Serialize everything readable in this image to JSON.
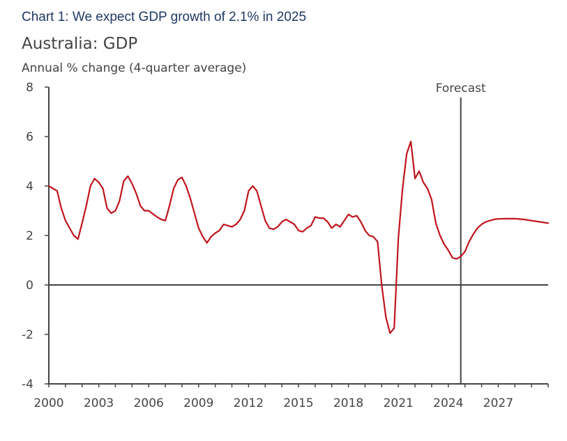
{
  "caption": "Chart 1: We expect GDP growth of 2.1% in 2025",
  "chart_data": {
    "type": "line",
    "title": "Australia: GDP",
    "subtitle": "Annual % change (4-quarter average)",
    "xlabel": "",
    "ylabel": "",
    "ylim": [
      -4,
      8
    ],
    "xlim": [
      2000,
      2030
    ],
    "yticks": [
      "8",
      "6",
      "4",
      "2",
      "0",
      "-2",
      "-4"
    ],
    "yticks_values": [
      8,
      6,
      4,
      2,
      0,
      -2,
      -4
    ],
    "xticks": [
      "2000",
      "2003",
      "2006",
      "2009",
      "2012",
      "2015",
      "2018",
      "2021",
      "2024",
      "2027"
    ],
    "xticks_values": [
      2000,
      2003,
      2006,
      2009,
      2012,
      2015,
      2018,
      2021,
      2024,
      2027
    ],
    "grid": false,
    "colors": {
      "series": "#c0141c",
      "axis": "#444444"
    },
    "annotation": {
      "text": "Forecast",
      "x": 2024.75
    },
    "series": [
      {
        "x": [
          2000.0,
          2000.5,
          2000.75,
          2001.0,
          2001.5,
          2001.75,
          2002.0,
          2002.25,
          2002.5,
          2002.75,
          2003.0,
          2003.25,
          2003.5,
          2003.75,
          2004.0,
          2004.25,
          2004.5,
          2004.75,
          2005.0,
          2005.25,
          2005.5,
          2005.75,
          2006.0,
          2006.5,
          2006.75,
          2007.0,
          2007.25,
          2007.5,
          2007.75,
          2008.0,
          2008.25,
          2008.5,
          2008.75,
          2009.0,
          2009.25,
          2009.5,
          2009.75,
          2010.0,
          2010.25,
          2010.5,
          2010.75,
          2011.0,
          2011.25,
          2011.5,
          2011.75,
          2012.0,
          2012.25,
          2012.5,
          2012.75,
          2013.0,
          2013.25,
          2013.5,
          2013.75,
          2014.0,
          2014.25,
          2014.5,
          2014.75,
          2015.0,
          2015.25,
          2015.5,
          2015.75,
          2016.0,
          2016.25,
          2016.5,
          2016.75,
          2017.0,
          2017.25,
          2017.5,
          2017.75,
          2018.0,
          2018.25,
          2018.5,
          2018.75,
          2019.0,
          2019.25,
          2019.5,
          2019.75,
          2020.0,
          2020.25,
          2020.5,
          2020.75,
          2021.0,
          2021.25,
          2021.5,
          2021.75,
          2022.0,
          2022.25,
          2022.5,
          2022.75,
          2023.0,
          2023.25,
          2023.5,
          2023.75,
          2024.0,
          2024.25,
          2024.5,
          2024.75,
          2025.0,
          2025.25,
          2025.5,
          2025.75,
          2026.0,
          2026.25,
          2026.5,
          2026.75,
          2027.0,
          2027.5,
          2028.0,
          2028.5,
          2029.0,
          2029.5,
          2030.0
        ],
        "values": [
          4.0,
          3.8,
          3.1,
          2.6,
          2.0,
          1.85,
          2.5,
          3.2,
          4.0,
          4.3,
          4.15,
          3.9,
          3.1,
          2.9,
          3.0,
          3.4,
          4.2,
          4.4,
          4.1,
          3.7,
          3.2,
          3.0,
          3.0,
          2.75,
          2.65,
          2.6,
          3.2,
          3.9,
          4.25,
          4.35,
          4.0,
          3.5,
          2.9,
          2.3,
          1.95,
          1.7,
          1.95,
          2.1,
          2.2,
          2.45,
          2.4,
          2.35,
          2.45,
          2.65,
          3.0,
          3.8,
          4.0,
          3.8,
          3.2,
          2.6,
          2.3,
          2.25,
          2.35,
          2.55,
          2.65,
          2.55,
          2.45,
          2.2,
          2.15,
          2.3,
          2.4,
          2.75,
          2.7,
          2.7,
          2.55,
          2.3,
          2.45,
          2.35,
          2.6,
          2.85,
          2.75,
          2.8,
          2.55,
          2.2,
          2.0,
          1.95,
          1.75,
          0.0,
          -1.3,
          -1.95,
          -1.75,
          1.9,
          3.9,
          5.3,
          5.8,
          4.3,
          4.6,
          4.15,
          3.9,
          3.45,
          2.5,
          2.0,
          1.65,
          1.4,
          1.1,
          1.05,
          1.15,
          1.35,
          1.75,
          2.05,
          2.3,
          2.45,
          2.55,
          2.6,
          2.65,
          2.67,
          2.68,
          2.68,
          2.65,
          2.6,
          2.55,
          2.5
        ]
      }
    ]
  }
}
